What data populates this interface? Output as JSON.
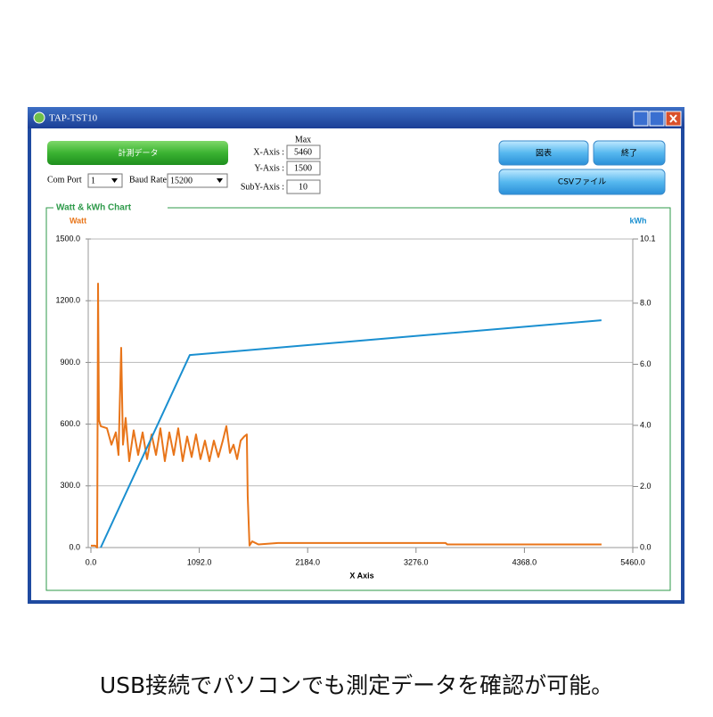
{
  "window": {
    "title": "TAP-TST10"
  },
  "controls": {
    "measure_button": "計測データ",
    "com_port_label": "Com Port",
    "com_port_value": "1",
    "baud_rate_label": "Baud Rate",
    "baud_rate_value": "15200",
    "max_label": "Max",
    "x_axis_label": "X-Axis :",
    "x_axis_value": "5460",
    "y_axis_label": "Y-Axis :",
    "y_axis_value": "1500",
    "suby_axis_label": "SubY-Axis :",
    "suby_axis_value": "10",
    "chart_button": "図表",
    "exit_button": "終了",
    "csv_button": "CSVファイル"
  },
  "chart_data": {
    "type": "line",
    "title": "Watt & kWh Chart",
    "x_label": "X Axis",
    "xlim": [
      0,
      5460
    ],
    "xticks": [
      {
        "value": 0,
        "label": "0.0"
      },
      {
        "value": 1092,
        "label": "1092.0"
      },
      {
        "value": 2184,
        "label": "2184.0"
      },
      {
        "value": 3276,
        "label": "3276.0"
      },
      {
        "value": 4368,
        "label": "4368.0"
      },
      {
        "value": 5460,
        "label": "5460.0"
      }
    ],
    "ylim": [
      0,
      1500
    ],
    "yticks": [
      {
        "value": 0,
        "label": "0.0"
      },
      {
        "value": 300,
        "label": "300.0"
      },
      {
        "value": 600,
        "label": "600.0"
      },
      {
        "value": 900,
        "label": "900.0"
      },
      {
        "value": 1200,
        "label": "1200.0"
      },
      {
        "value": 1500,
        "label": "1500.0"
      }
    ],
    "y2lim": [
      0,
      10.1
    ],
    "y2ticks": [
      {
        "value": 0,
        "label": "0.0"
      },
      {
        "value": 2,
        "label": "2.0"
      },
      {
        "value": 4,
        "label": "4.0"
      },
      {
        "value": 6,
        "label": "6.0"
      },
      {
        "value": 8,
        "label": "8.0"
      },
      {
        "value": 10.1,
        "label": "10.1"
      }
    ],
    "grid": true,
    "series": [
      {
        "name": "Watt",
        "color": "#e8751a",
        "x": [
          0,
          45,
          63,
          72,
          81,
          99,
          162,
          207,
          251,
          278,
          305,
          323,
          350,
          386,
          431,
          476,
          521,
          566,
          611,
          656,
          700,
          745,
          790,
          835,
          880,
          925,
          970,
          1015,
          1059,
          1104,
          1149,
          1194,
          1239,
          1284,
          1329,
          1365,
          1401,
          1437,
          1473,
          1509,
          1545,
          1571,
          1580,
          1598,
          1625,
          1688,
          1886,
          3574,
          3592,
          5145
        ],
        "values": [
          9,
          9,
          0,
          1283,
          620,
          590,
          580,
          500,
          560,
          450,
          971,
          500,
          630,
          420,
          570,
          450,
          560,
          430,
          550,
          450,
          580,
          420,
          560,
          450,
          580,
          420,
          540,
          440,
          550,
          430,
          520,
          420,
          520,
          440,
          520,
          590,
          460,
          500,
          430,
          520,
          540,
          550,
          250,
          10,
          30,
          15,
          22,
          22,
          15,
          15
        ]
      },
      {
        "name": "kWh",
        "color": "#1a8fd0",
        "axis": "y2",
        "x": [
          99,
          996,
          5144
        ],
        "values": [
          0,
          6.3,
          7.44
        ]
      }
    ]
  },
  "caption": "USB接続でパソコンでも測定データを確認が可能。"
}
